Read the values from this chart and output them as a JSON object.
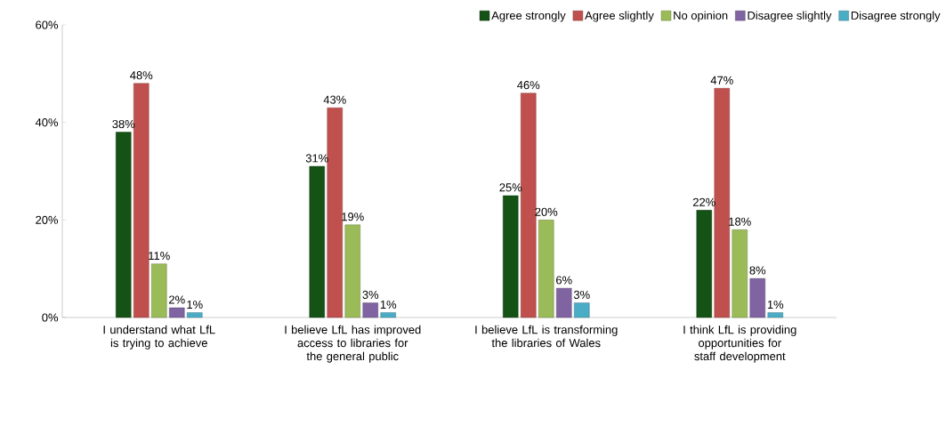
{
  "chart_data": {
    "type": "bar",
    "categories": [
      "I understand what LfL is trying to achieve",
      "I believe LfL has improved access to libraries for the general public",
      "I believe LfL is transforming the libraries of Wales",
      "I think LfL is providing opportunities for staff development"
    ],
    "series": [
      {
        "name": "Agree strongly",
        "color": "#155215",
        "values": [
          38,
          31,
          25,
          22
        ],
        "value_labels": [
          "38%",
          "31%",
          "25%",
          "22%"
        ]
      },
      {
        "name": "Agree slightly",
        "color": "#c0504d",
        "values": [
          48,
          43,
          46,
          47
        ],
        "value_labels": [
          "48%",
          "43%",
          "46%",
          "47%"
        ]
      },
      {
        "name": "No opinion",
        "color": "#9bbb59",
        "values": [
          11,
          19,
          20,
          18
        ],
        "value_labels": [
          "11%",
          "19%",
          "20%",
          "18%"
        ]
      },
      {
        "name": "Disagree slightly",
        "color": "#8064a2",
        "values": [
          2,
          3,
          6,
          8
        ],
        "value_labels": [
          "2%",
          "3%",
          "6%",
          "8%"
        ]
      },
      {
        "name": "Disagree strongly",
        "color": "#4bacc6",
        "values": [
          1,
          1,
          3,
          1
        ],
        "value_labels": [
          "1%",
          "1%",
          "3%",
          "1%"
        ]
      }
    ],
    "ylim": [
      0,
      60
    ],
    "yticks": [
      {
        "value": 0,
        "label": "0%"
      },
      {
        "value": 20,
        "label": "20%"
      },
      {
        "value": 40,
        "label": "40%"
      },
      {
        "value": 60,
        "label": "60%"
      }
    ],
    "legend": "top"
  }
}
